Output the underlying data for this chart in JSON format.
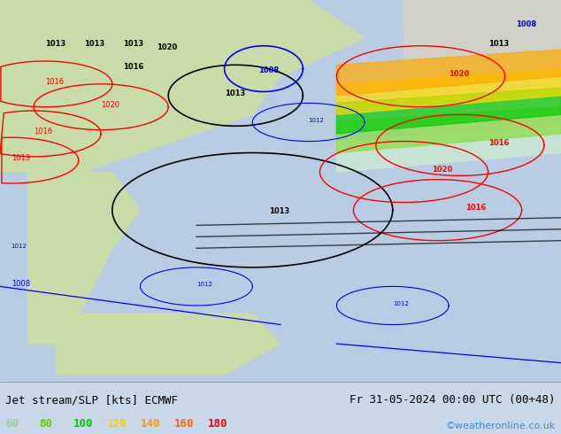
{
  "title_left": "Jet stream/SLP [kts] ECMWF",
  "title_right": "Fr 31-05-2024 00:00 UTC (00+48)",
  "credit": "©weatheronline.co.uk",
  "legend_values": [
    60,
    80,
    100,
    120,
    140,
    160,
    180
  ],
  "legend_colors": [
    "#99cc99",
    "#66cc00",
    "#00cc00",
    "#ffcc00",
    "#ff9900",
    "#ff6600",
    "#ff0000"
  ],
  "bg_color": "#c8d8e8",
  "map_bg": "#e8f0e8",
  "bottom_bar_color": "#d0d8e0",
  "fig_width": 6.34,
  "fig_height": 4.9,
  "dpi": 100
}
